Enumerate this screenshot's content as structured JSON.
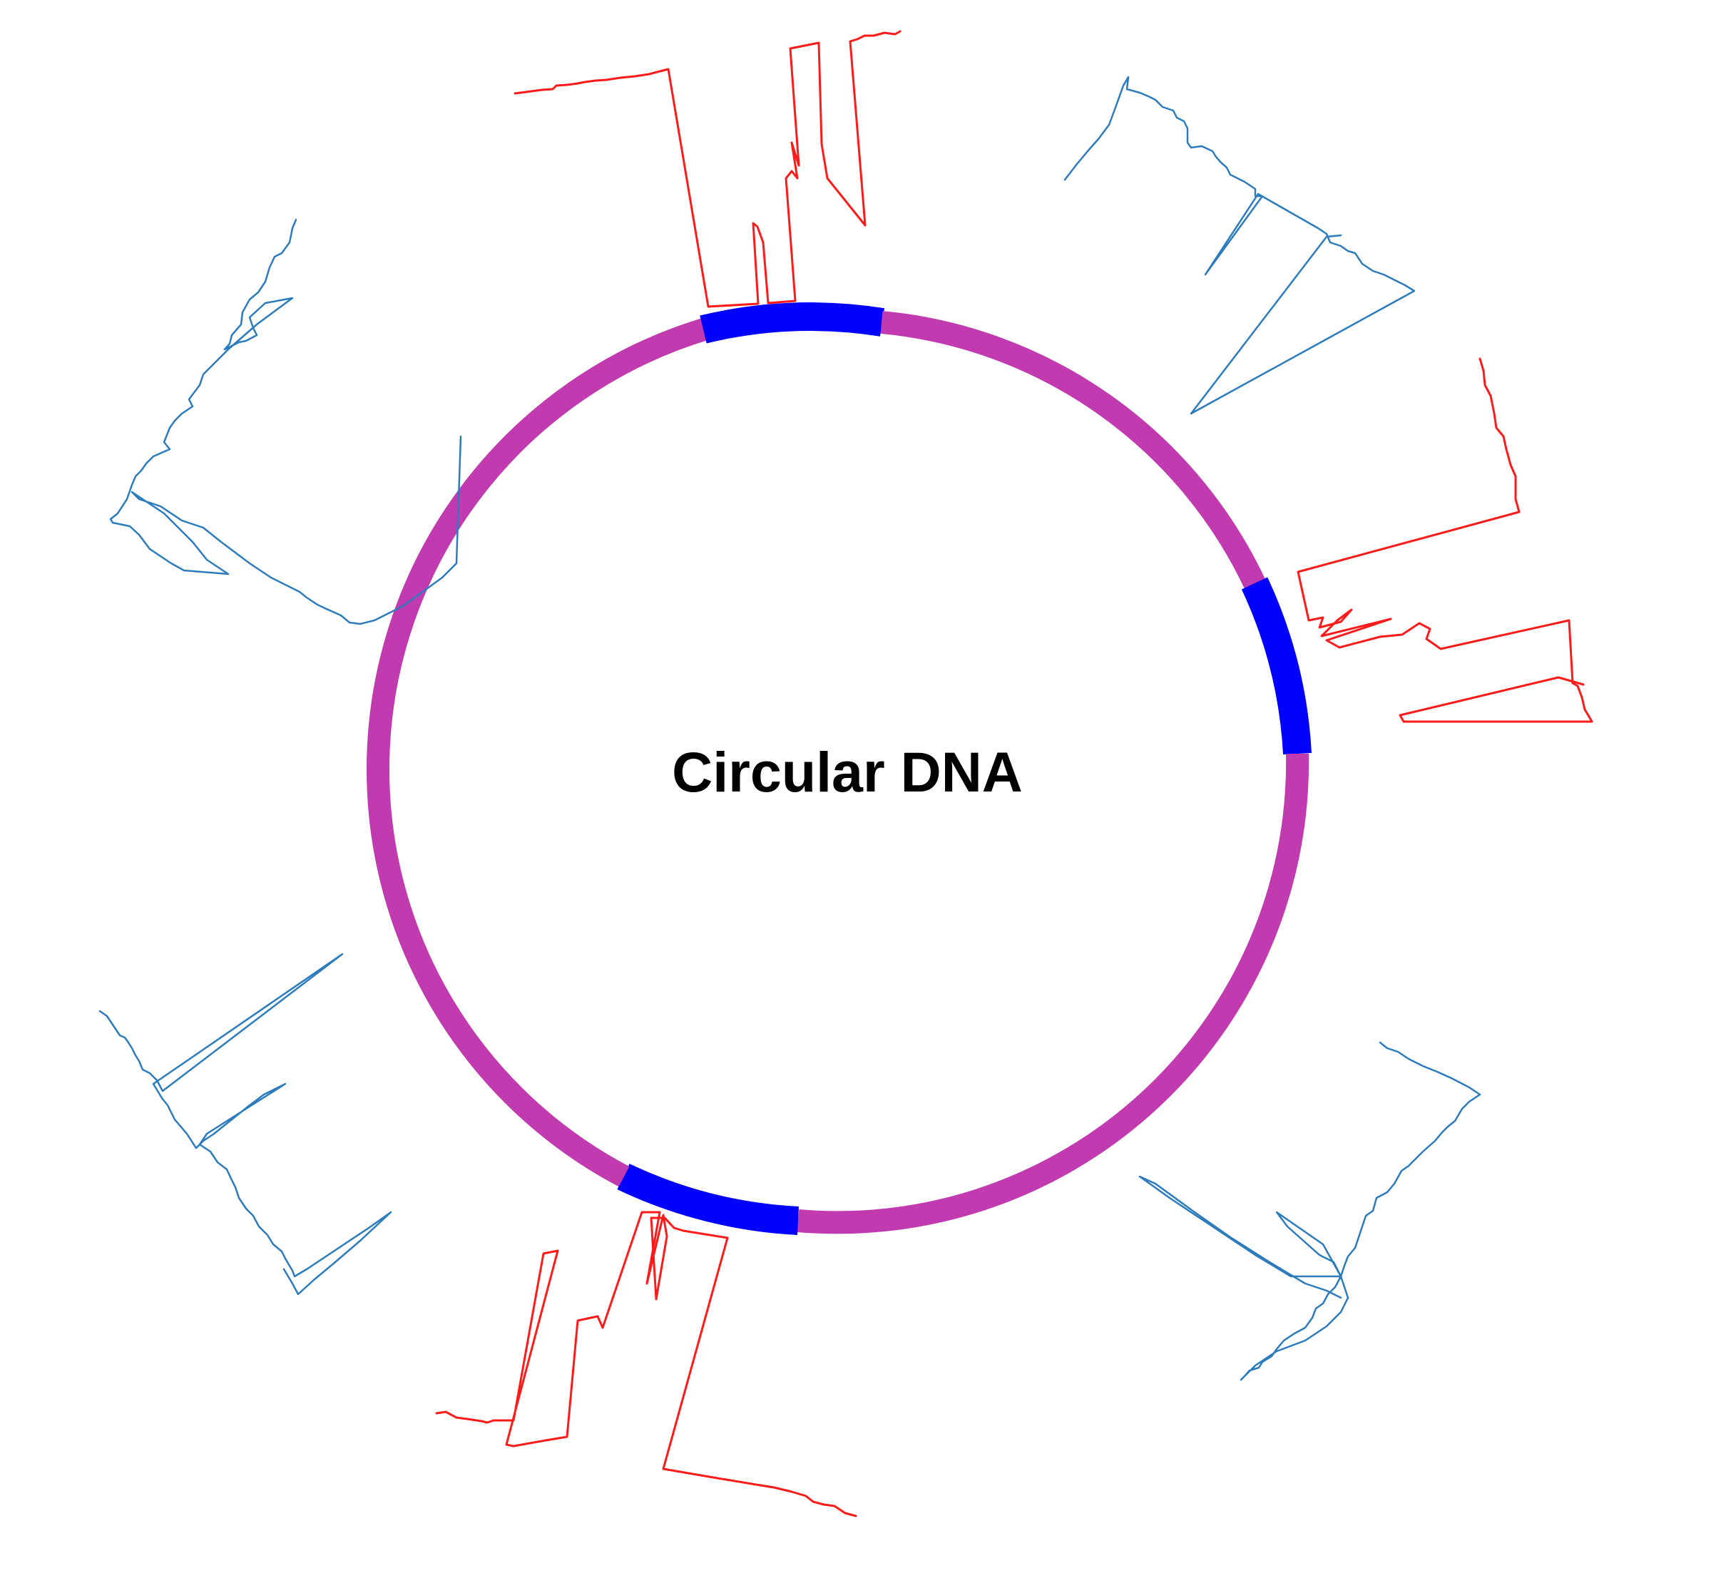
{
  "title": "Circular DNA",
  "colors": {
    "ring": "#c13ab0",
    "highlight": "#0000ff",
    "red_trace": "#ff1a1a",
    "blue_trace": "#2b7bbd",
    "label": "#000000",
    "background": "#ffffff"
  },
  "ring": {
    "segments": [
      {
        "name": "ring-segment-top-left",
        "kind": "ring"
      },
      {
        "name": "highlight-segment-top",
        "kind": "highlight"
      },
      {
        "name": "ring-segment-right-upper",
        "kind": "ring"
      },
      {
        "name": "highlight-segment-right",
        "kind": "highlight"
      },
      {
        "name": "ring-segment-right-lower",
        "kind": "ring"
      },
      {
        "name": "highlight-segment-bottom",
        "kind": "highlight"
      },
      {
        "name": "ring-segment-left",
        "kind": "ring"
      }
    ]
  },
  "traces": [
    {
      "name": "red-trace-top",
      "color": "red"
    },
    {
      "name": "red-trace-right",
      "color": "red"
    },
    {
      "name": "red-trace-bottom",
      "color": "red"
    },
    {
      "name": "blue-trace-top-left",
      "color": "blue"
    },
    {
      "name": "blue-trace-top-right",
      "color": "blue"
    },
    {
      "name": "blue-trace-bottom-left",
      "color": "blue"
    },
    {
      "name": "blue-trace-bottom-right",
      "color": "blue"
    }
  ]
}
